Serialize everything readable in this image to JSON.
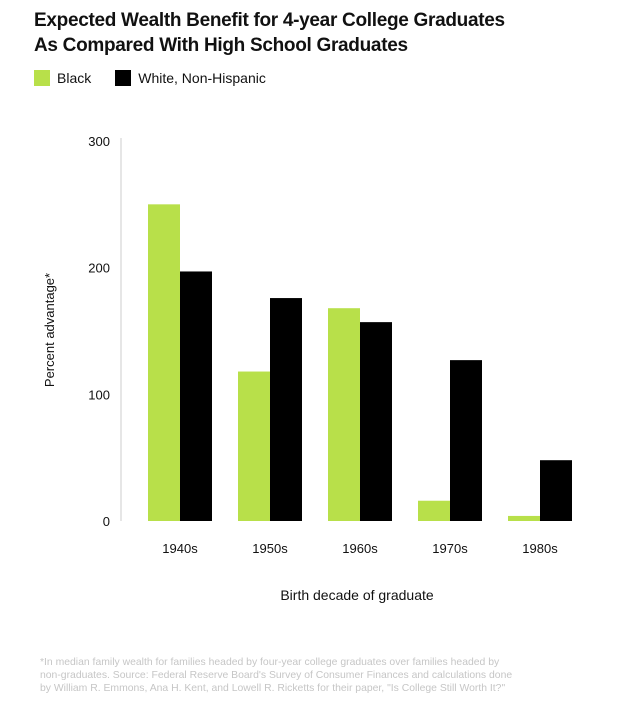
{
  "header": {
    "title_line1": "Expected Wealth Benefit for 4-year College Graduates",
    "title_line2": "As Compared With High School Graduates"
  },
  "colors": {
    "black_series": "#b8e04a",
    "white_series": "#000000",
    "axis": "#cccccc",
    "text": "#111111",
    "footnote": "#c6c6c6"
  },
  "chart_data": {
    "type": "bar",
    "title": "Expected Wealth Benefit for 4-year College Graduates As Compared With High School Graduates",
    "xlabel": "Birth decade of graduate",
    "ylabel": "Percent advantage*",
    "categories": [
      "1940s",
      "1950s",
      "1960s",
      "1970s",
      "1980s"
    ],
    "series": [
      {
        "name": "Black",
        "values": [
          250,
          118,
          168,
          16,
          4
        ]
      },
      {
        "name": "White, Non-Hispanic",
        "values": [
          197,
          176,
          157,
          127,
          48
        ]
      }
    ],
    "ylim": [
      0,
      300
    ],
    "yticks": [
      0,
      100,
      200,
      300
    ],
    "grid": false,
    "legend_position": "top-left"
  },
  "footnote": {
    "line1": "*In median family wealth for families headed by four-year college graduates over families headed by",
    "line2": "non-graduates. Source: Federal Reserve Board's Survey of Consumer Finances and calculations done",
    "line3": "by William R. Emmons, Ana H. Kent, and Lowell R. Ricketts for their paper, \"Is College Still Worth It?\""
  }
}
